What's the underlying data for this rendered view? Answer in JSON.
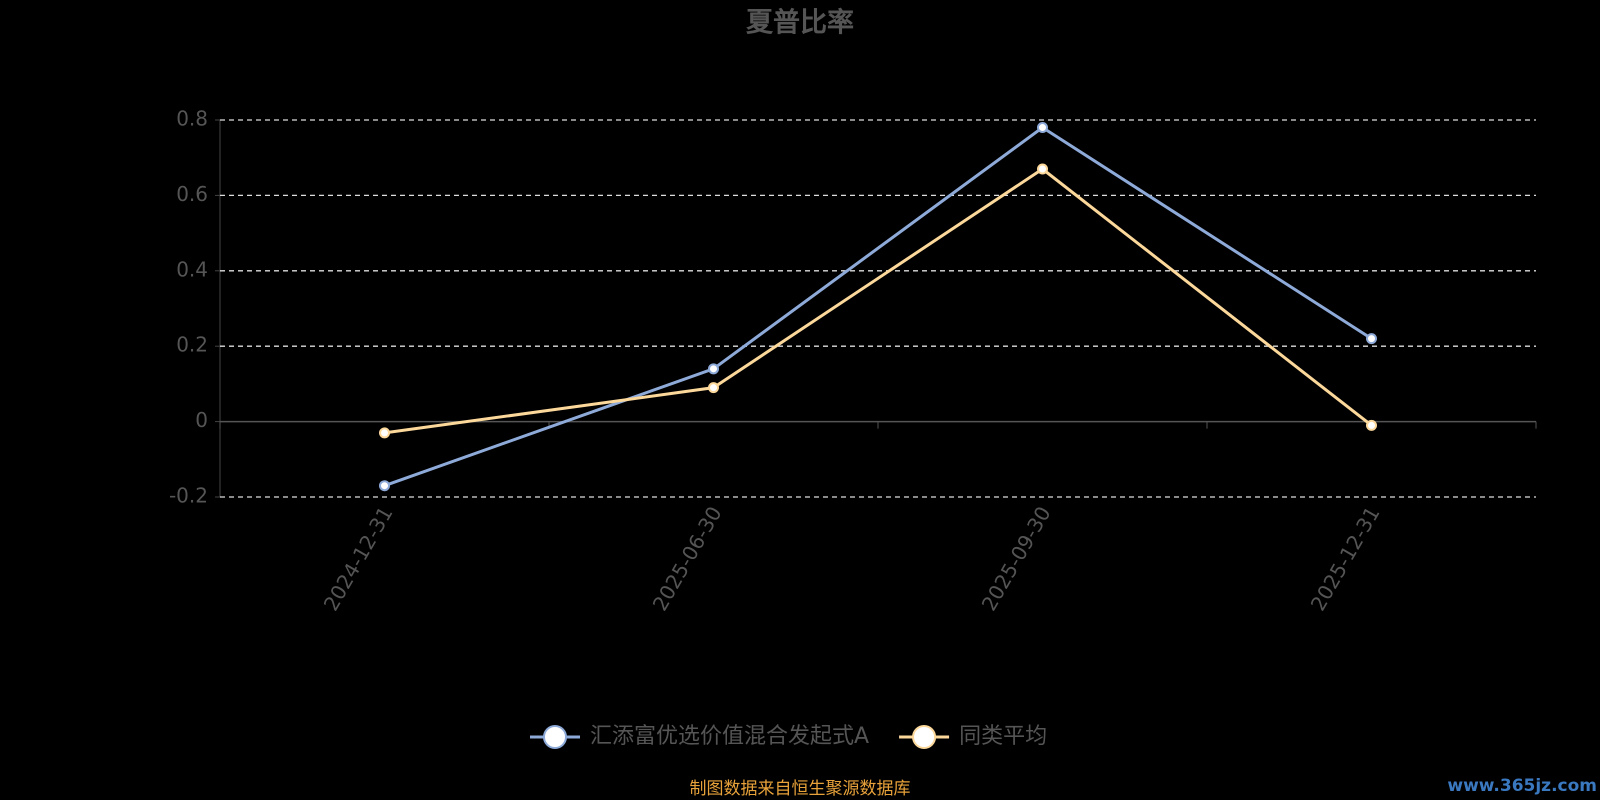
{
  "chart_data": {
    "type": "line",
    "title": "夏普比率",
    "categories": [
      "2024-12-31",
      "2025-06-30",
      "2025-09-30",
      "2025-12-31"
    ],
    "series": [
      {
        "name": "汇添富优选价值混合发起式A",
        "color": "#8eaad9",
        "values": [
          -0.17,
          0.14,
          0.78,
          0.22
        ]
      },
      {
        "name": "同类平均",
        "color": "#fcd89b",
        "values": [
          -0.03,
          0.09,
          0.67,
          -0.01
        ]
      }
    ],
    "ylim": [
      -0.2,
      0.8
    ],
    "yticks": [
      -0.2,
      0,
      0.2,
      0.4,
      0.6,
      0.8
    ],
    "grid": true,
    "legend": "bottom",
    "source": "制图数据来自恒生聚源数据库",
    "watermark": "www.365jz.com"
  }
}
